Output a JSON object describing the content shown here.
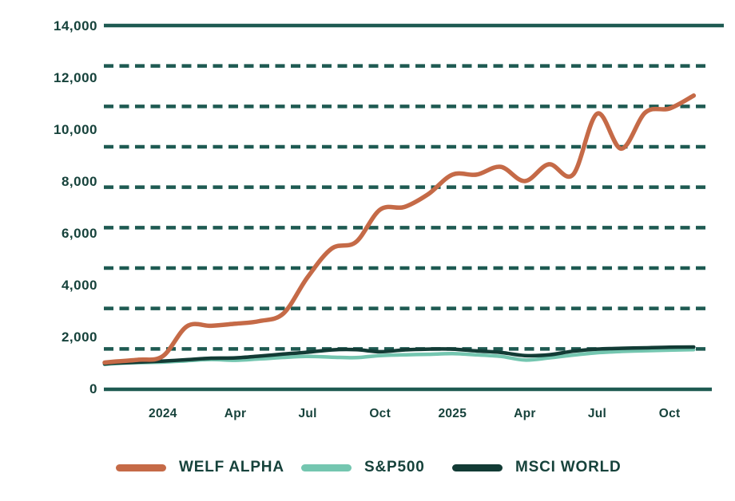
{
  "chart_data": {
    "type": "line",
    "title": "",
    "xlabel": "",
    "ylabel": "",
    "ylim": [
      0,
      14000
    ],
    "y_tick_values": [
      14000,
      12000,
      10000,
      8000,
      6000,
      4000,
      2000,
      0
    ],
    "y_tick_labels": [
      "14,000",
      "12,000",
      "10,000",
      "8,000",
      "6,000",
      "4,000",
      "2,000",
      "0"
    ],
    "x_tick_labels": [
      "2024",
      "Apr",
      "Jul",
      "Oct",
      "2025",
      "Apr",
      "Jul",
      "Oct"
    ],
    "x_tick_month_indices": [
      3,
      6,
      9,
      12,
      15,
      18,
      21,
      24
    ],
    "grid": "solid line at 14,000 (top) and 0 (bottom); 8 dashed horizontal lines evenly dividing the band into 9 intervals",
    "legend_position": "bottom",
    "months": [
      "Oct 2023",
      "Nov 2023",
      "Dec 2023",
      "Jan 2024",
      "Feb 2024",
      "Mar 2024",
      "Apr 2024",
      "May 2024",
      "Jun 2024",
      "Jul 2024",
      "Aug 2024",
      "Sep 2024",
      "Oct 2024",
      "Nov 2024",
      "Dec 2024",
      "Jan 2025",
      "Feb 2025",
      "Mar 2025",
      "Apr 2025",
      "May 2025",
      "Jun 2025",
      "Jul 2025",
      "Aug 2025",
      "Sep 2025",
      "Oct 2025",
      "Nov 2025"
    ],
    "series": [
      {
        "name": "WELF ALPHA",
        "color": "#C56A47",
        "values": [
          1000,
          1040,
          1110,
          1250,
          2400,
          2420,
          2500,
          2600,
          2900,
          4300,
          5400,
          5650,
          6900,
          7000,
          7500,
          8250,
          8250,
          8550,
          8000,
          8650,
          8250,
          10600,
          9250,
          10650,
          10800,
          11300
        ]
      },
      {
        "name": "S&P500",
        "color": "#74C6B0",
        "values": [
          930,
          960,
          1000,
          1020,
          1070,
          1120,
          1090,
          1140,
          1200,
          1240,
          1210,
          1190,
          1270,
          1300,
          1320,
          1345,
          1300,
          1240,
          1100,
          1180,
          1290,
          1380,
          1430,
          1460,
          1480,
          1500
        ]
      },
      {
        "name": "MSCI WORLD",
        "color": "#123B35",
        "values": [
          950,
          980,
          1020,
          1060,
          1110,
          1170,
          1180,
          1250,
          1330,
          1400,
          1490,
          1500,
          1420,
          1490,
          1520,
          1520,
          1450,
          1390,
          1270,
          1300,
          1440,
          1520,
          1550,
          1570,
          1595,
          1600
        ]
      }
    ]
  },
  "legend": {
    "items": [
      {
        "label": "WELF ALPHA"
      },
      {
        "label": "S&P500"
      },
      {
        "label": "MSCI WORLD"
      }
    ]
  },
  "colors": {
    "background": "#FFFFFF",
    "text": "#16423B",
    "grid": "#1E5A52",
    "welf_alpha": "#C56A47",
    "sp500": "#74C6B0",
    "msci_world": "#123B35"
  }
}
